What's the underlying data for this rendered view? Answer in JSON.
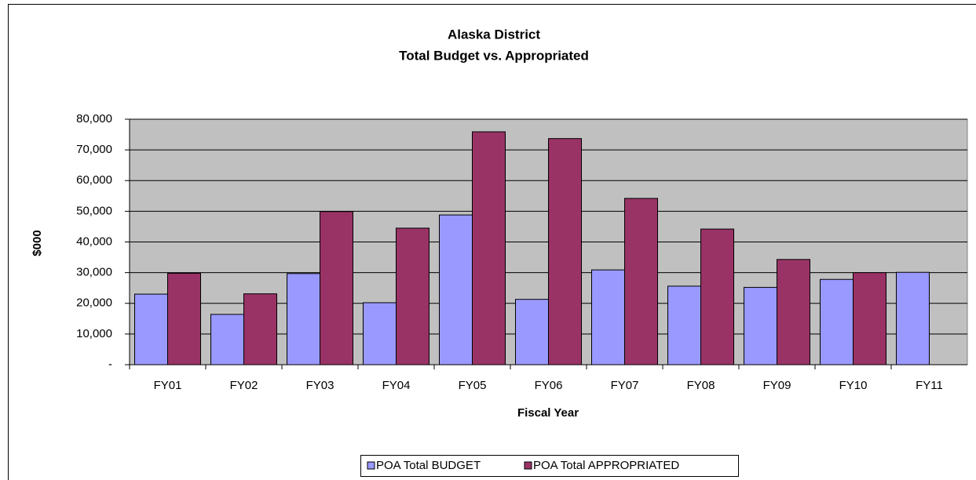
{
  "chart_data": {
    "type": "bar",
    "title": "Alaska District",
    "subtitle": "Total Budget vs. Appropriated",
    "x_label": "Fiscal Year",
    "y_label": "$000",
    "categories": [
      "FY01",
      "FY02",
      "FY03",
      "FY04",
      "FY05",
      "FY06",
      "FY07",
      "FY08",
      "FY09",
      "FY10",
      "FY11"
    ],
    "series": [
      {
        "name": "POA Total BUDGET",
        "color": "#9999ff",
        "values": [
          23000,
          16400,
          29700,
          20200,
          48800,
          21300,
          30900,
          25600,
          25200,
          27800,
          30100
        ]
      },
      {
        "name": "POA Total APPROPRIATED",
        "color": "#993366",
        "values": [
          29800,
          23100,
          49900,
          44500,
          75900,
          73700,
          54200,
          44200,
          34300,
          30000,
          null
        ]
      }
    ],
    "ylim": [
      0,
      80000
    ],
    "yticks": [
      {
        "value": 0,
        "label": "-"
      },
      {
        "value": 10000,
        "label": "10,000"
      },
      {
        "value": 20000,
        "label": "20,000"
      },
      {
        "value": 30000,
        "label": "30,000"
      },
      {
        "value": 40000,
        "label": "40,000"
      },
      {
        "value": 50000,
        "label": "50,000"
      },
      {
        "value": 60000,
        "label": "60,000"
      },
      {
        "value": 70000,
        "label": "70,000"
      },
      {
        "value": 80000,
        "label": "80,000"
      }
    ],
    "grid": true,
    "legend": "bottom",
    "plot_background": "#c0c0c0"
  }
}
